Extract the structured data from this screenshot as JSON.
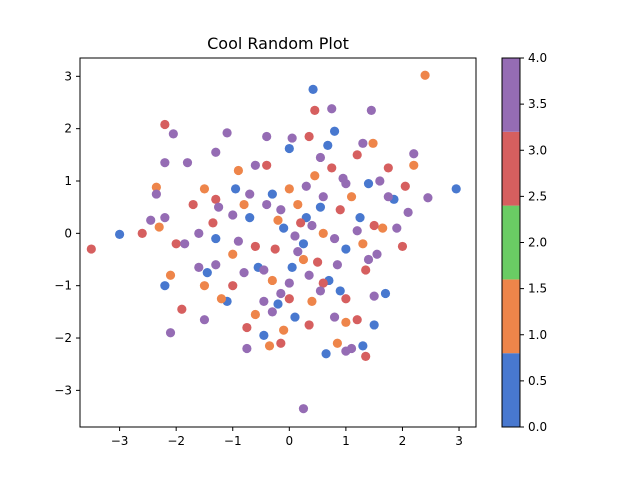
{
  "chart_data": {
    "type": "scatter",
    "title": "Cool Random Plot",
    "xlabel": "",
    "ylabel": "",
    "xlim": [
      -3.7,
      3.3
    ],
    "ylim": [
      -3.7,
      3.35
    ],
    "xticks": [
      -3,
      -2,
      -1,
      0,
      1,
      2,
      3
    ],
    "yticks": [
      -3,
      -2,
      -1,
      0,
      1,
      2,
      3
    ],
    "grid": false,
    "colorbar": {
      "range": [
        0,
        4
      ],
      "ticks": [
        0.0,
        0.5,
        1.0,
        1.5,
        2.0,
        2.5,
        3.0,
        3.5,
        4.0
      ],
      "tick_labels": [
        "0.0",
        "0.5",
        "1.0",
        "1.5",
        "2.0",
        "2.5",
        "3.0",
        "3.5",
        "4.0"
      ],
      "bands": [
        {
          "from": 0,
          "to": 0.8,
          "color": "#4878CF"
        },
        {
          "from": 0.8,
          "to": 1.6,
          "color": "#EE854A"
        },
        {
          "from": 1.6,
          "to": 2.4,
          "color": "#6ACC64"
        },
        {
          "from": 2.4,
          "to": 3.2,
          "color": "#D65F5F"
        },
        {
          "from": 3.2,
          "to": 4.0,
          "color": "#956CB4"
        }
      ]
    },
    "points": [
      {
        "x": 0.42,
        "y": 2.75,
        "c": 0
      },
      {
        "x": 2.95,
        "y": 0.85,
        "c": 0
      },
      {
        "x": -3.0,
        "y": -0.02,
        "c": 0
      },
      {
        "x": 0.8,
        "y": 1.95,
        "c": 0
      },
      {
        "x": 0.68,
        "y": 1.68,
        "c": 0
      },
      {
        "x": 0.0,
        "y": 1.62,
        "c": 0
      },
      {
        "x": -0.95,
        "y": 0.85,
        "c": 0
      },
      {
        "x": -0.3,
        "y": 0.75,
        "c": 0
      },
      {
        "x": 0.55,
        "y": 0.5,
        "c": 0
      },
      {
        "x": 1.25,
        "y": 0.3,
        "c": 0
      },
      {
        "x": -0.1,
        "y": 0.1,
        "c": 0
      },
      {
        "x": 0.25,
        "y": -0.2,
        "c": 0
      },
      {
        "x": 1.0,
        "y": -0.3,
        "c": 0
      },
      {
        "x": -1.3,
        "y": -0.1,
        "c": 0
      },
      {
        "x": -0.55,
        "y": -0.65,
        "c": 0
      },
      {
        "x": 0.7,
        "y": -0.9,
        "c": 0
      },
      {
        "x": -2.2,
        "y": -1.0,
        "c": 0
      },
      {
        "x": -1.1,
        "y": -1.3,
        "c": 0
      },
      {
        "x": 0.1,
        "y": -1.6,
        "c": 0
      },
      {
        "x": 1.7,
        "y": -1.15,
        "c": 0
      },
      {
        "x": 1.5,
        "y": -1.75,
        "c": 0
      },
      {
        "x": 0.65,
        "y": -2.3,
        "c": 0
      },
      {
        "x": -0.45,
        "y": -1.95,
        "c": 0
      },
      {
        "x": 1.3,
        "y": -2.15,
        "c": 0
      },
      {
        "x": 1.4,
        "y": 0.95,
        "c": 0
      },
      {
        "x": 0.3,
        "y": 0.3,
        "c": 0
      },
      {
        "x": -0.7,
        "y": 0.3,
        "c": 0
      },
      {
        "x": 1.85,
        "y": 0.65,
        "c": 0
      },
      {
        "x": -1.45,
        "y": -0.75,
        "c": 0
      },
      {
        "x": 0.05,
        "y": -0.65,
        "c": 0
      },
      {
        "x": 0.9,
        "y": -1.1,
        "c": 0
      },
      {
        "x": -0.2,
        "y": -1.35,
        "c": 0
      },
      {
        "x": 2.4,
        "y": 3.02,
        "c": 1
      },
      {
        "x": 1.48,
        "y": 1.72,
        "c": 1
      },
      {
        "x": -2.35,
        "y": 0.88,
        "c": 1
      },
      {
        "x": -2.3,
        "y": 0.12,
        "c": 1
      },
      {
        "x": -1.5,
        "y": 0.85,
        "c": 1
      },
      {
        "x": -0.8,
        "y": 0.55,
        "c": 1
      },
      {
        "x": 0.0,
        "y": 0.85,
        "c": 1
      },
      {
        "x": 0.45,
        "y": 1.1,
        "c": 1
      },
      {
        "x": 1.1,
        "y": 0.7,
        "c": 1
      },
      {
        "x": -0.2,
        "y": 0.25,
        "c": 1
      },
      {
        "x": 0.6,
        "y": 0.0,
        "c": 1
      },
      {
        "x": 1.3,
        "y": -0.2,
        "c": 1
      },
      {
        "x": -1.0,
        "y": -0.4,
        "c": 1
      },
      {
        "x": -0.3,
        "y": -0.9,
        "c": 1
      },
      {
        "x": 0.4,
        "y": -1.3,
        "c": 1
      },
      {
        "x": -1.5,
        "y": -1.0,
        "c": 1
      },
      {
        "x": -2.1,
        "y": -0.8,
        "c": 1
      },
      {
        "x": -0.6,
        "y": -1.55,
        "c": 1
      },
      {
        "x": 0.85,
        "y": -2.1,
        "c": 1
      },
      {
        "x": -0.35,
        "y": -2.15,
        "c": 1
      },
      {
        "x": 1.65,
        "y": 0.1,
        "c": 1
      },
      {
        "x": 2.2,
        "y": 1.3,
        "c": 1
      },
      {
        "x": -0.9,
        "y": 1.2,
        "c": 1
      },
      {
        "x": 0.15,
        "y": 0.55,
        "c": 1
      },
      {
        "x": -1.2,
        "y": -1.25,
        "c": 1
      },
      {
        "x": 0.25,
        "y": -0.5,
        "c": 1
      },
      {
        "x": 1.0,
        "y": -1.7,
        "c": 1
      },
      {
        "x": -0.1,
        "y": -1.85,
        "c": 1
      },
      {
        "x": 0.45,
        "y": 2.35,
        "c": 2
      },
      {
        "x": -2.2,
        "y": 2.08,
        "c": 2
      },
      {
        "x": -3.5,
        "y": -0.3,
        "c": 2
      },
      {
        "x": 2.05,
        "y": 0.9,
        "c": 2
      },
      {
        "x": 1.75,
        "y": 1.25,
        "c": 2
      },
      {
        "x": 1.2,
        "y": 1.5,
        "c": 2
      },
      {
        "x": 0.35,
        "y": 1.85,
        "c": 2
      },
      {
        "x": -0.4,
        "y": 1.3,
        "c": 2
      },
      {
        "x": -1.3,
        "y": 0.65,
        "c": 2
      },
      {
        "x": -2.6,
        "y": 0.0,
        "c": 2
      },
      {
        "x": -2.0,
        "y": -0.2,
        "c": 2
      },
      {
        "x": -1.7,
        "y": 0.55,
        "c": 2
      },
      {
        "x": 0.2,
        "y": 0.2,
        "c": 2
      },
      {
        "x": 0.9,
        "y": 0.45,
        "c": 2
      },
      {
        "x": 1.5,
        "y": 0.15,
        "c": 2
      },
      {
        "x": 2.0,
        "y": -0.25,
        "c": 2
      },
      {
        "x": -0.6,
        "y": -0.25,
        "c": 2
      },
      {
        "x": 0.5,
        "y": -0.55,
        "c": 2
      },
      {
        "x": 1.35,
        "y": -0.7,
        "c": 2
      },
      {
        "x": -1.9,
        "y": -1.45,
        "c": 2
      },
      {
        "x": -1.0,
        "y": -1.0,
        "c": 2
      },
      {
        "x": 0.0,
        "y": -1.25,
        "c": 2
      },
      {
        "x": 1.0,
        "y": -1.25,
        "c": 2
      },
      {
        "x": 0.35,
        "y": -1.75,
        "c": 2
      },
      {
        "x": -0.75,
        "y": -1.8,
        "c": 2
      },
      {
        "x": -0.15,
        "y": -2.1,
        "c": 2
      },
      {
        "x": 1.35,
        "y": -2.35,
        "c": 2
      },
      {
        "x": 1.2,
        "y": -1.65,
        "c": 2
      },
      {
        "x": 0.75,
        "y": 1.25,
        "c": 2
      },
      {
        "x": -0.25,
        "y": -0.3,
        "c": 2
      },
      {
        "x": 0.6,
        "y": -0.95,
        "c": 2
      },
      {
        "x": -1.35,
        "y": 0.2,
        "c": 2
      },
      {
        "x": 0.25,
        "y": -3.35,
        "c": 3
      },
      {
        "x": 1.45,
        "y": 2.35,
        "c": 3
      },
      {
        "x": -2.05,
        "y": 1.9,
        "c": 3
      },
      {
        "x": 2.2,
        "y": 1.52,
        "c": 3
      },
      {
        "x": 2.45,
        "y": 0.68,
        "c": 3
      },
      {
        "x": -2.2,
        "y": 1.35,
        "c": 3
      },
      {
        "x": -1.8,
        "y": 1.35,
        "c": 3
      },
      {
        "x": -1.3,
        "y": 1.55,
        "c": 3
      },
      {
        "x": -0.4,
        "y": 1.85,
        "c": 3
      },
      {
        "x": 0.55,
        "y": 1.45,
        "c": 3
      },
      {
        "x": 1.6,
        "y": 1.0,
        "c": 3
      },
      {
        "x": -2.2,
        "y": 0.3,
        "c": 3
      },
      {
        "x": -1.6,
        "y": 0.0,
        "c": 3
      },
      {
        "x": -1.0,
        "y": 0.35,
        "c": 3
      },
      {
        "x": -0.4,
        "y": 0.55,
        "c": 3
      },
      {
        "x": 0.3,
        "y": 0.9,
        "c": 3
      },
      {
        "x": 1.0,
        "y": 0.95,
        "c": 3
      },
      {
        "x": 0.1,
        "y": -0.05,
        "c": 3
      },
      {
        "x": 0.8,
        "y": -0.1,
        "c": 3
      },
      {
        "x": 1.55,
        "y": -0.4,
        "c": 3
      },
      {
        "x": -0.8,
        "y": -0.75,
        "c": 3
      },
      {
        "x": 0.35,
        "y": -0.8,
        "c": 3
      },
      {
        "x": 1.5,
        "y": -1.2,
        "c": 3
      },
      {
        "x": -2.1,
        "y": -1.9,
        "c": 3
      },
      {
        "x": -0.75,
        "y": -2.2,
        "c": 3
      },
      {
        "x": -0.45,
        "y": -1.3,
        "c": 3
      },
      {
        "x": 0.8,
        "y": -1.6,
        "c": 3
      },
      {
        "x": 1.0,
        "y": -2.25,
        "c": 3
      },
      {
        "x": -1.3,
        "y": -0.6,
        "c": 3
      },
      {
        "x": 0.6,
        "y": 0.7,
        "c": 3
      },
      {
        "x": -0.15,
        "y": -1.15,
        "c": 3
      },
      {
        "x": 1.9,
        "y": 0.1,
        "c": 3
      },
      {
        "x": 0.75,
        "y": 2.38,
        "c": 4
      },
      {
        "x": -1.1,
        "y": 1.92,
        "c": 4
      },
      {
        "x": 0.05,
        "y": 1.82,
        "c": 4
      },
      {
        "x": 1.3,
        "y": 1.72,
        "c": 4
      },
      {
        "x": -2.35,
        "y": 0.75,
        "c": 4
      },
      {
        "x": -2.45,
        "y": 0.25,
        "c": 4
      },
      {
        "x": 2.1,
        "y": 0.4,
        "c": 4
      },
      {
        "x": 1.75,
        "y": 0.7,
        "c": 4
      },
      {
        "x": -0.6,
        "y": 1.3,
        "c": 4
      },
      {
        "x": 0.95,
        "y": 1.05,
        "c": 4
      },
      {
        "x": -1.25,
        "y": 0.5,
        "c": 4
      },
      {
        "x": -0.15,
        "y": 0.45,
        "c": 4
      },
      {
        "x": 0.4,
        "y": 0.15,
        "c": 4
      },
      {
        "x": 1.2,
        "y": 0.05,
        "c": 4
      },
      {
        "x": -1.85,
        "y": -0.2,
        "c": 4
      },
      {
        "x": -0.9,
        "y": -0.15,
        "c": 4
      },
      {
        "x": 0.15,
        "y": -0.35,
        "c": 4
      },
      {
        "x": 1.4,
        "y": -0.5,
        "c": 4
      },
      {
        "x": -1.6,
        "y": -0.65,
        "c": 4
      },
      {
        "x": -0.45,
        "y": -0.7,
        "c": 4
      },
      {
        "x": 0.55,
        "y": -1.1,
        "c": 4
      },
      {
        "x": -1.5,
        "y": -1.65,
        "c": 4
      },
      {
        "x": -0.3,
        "y": -1.5,
        "c": 4
      },
      {
        "x": 1.1,
        "y": -2.2,
        "c": 4
      },
      {
        "x": 0.0,
        "y": -0.95,
        "c": 4
      },
      {
        "x": -0.7,
        "y": 0.75,
        "c": 4
      },
      {
        "x": 0.85,
        "y": -0.6,
        "c": 4
      }
    ]
  }
}
